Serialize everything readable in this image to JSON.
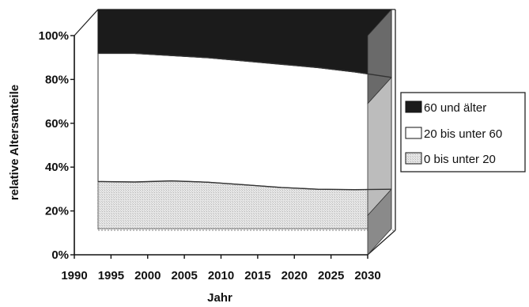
{
  "chart_data": {
    "type": "area",
    "stacked": true,
    "percent": true,
    "three_d": true,
    "xlabel": "Jahr",
    "ylabel": "relative Altersanteile",
    "x": [
      1990,
      1995,
      2000,
      2005,
      2010,
      2015,
      2020,
      2025,
      2030
    ],
    "x_tick_labels": [
      "1990",
      "1995",
      "2000",
      "2005",
      "2010",
      "2015",
      "2020",
      "2025",
      "2030"
    ],
    "ylim": [
      0,
      100
    ],
    "y_ticks": [
      0,
      20,
      40,
      60,
      80,
      100
    ],
    "y_tick_labels": [
      "0%",
      "20%",
      "40%",
      "60%",
      "80%",
      "100%"
    ],
    "series": [
      {
        "name": "0 bis unter 20",
        "values": [
          21.5,
          21.3,
          21.8,
          21.2,
          20.0,
          18.8,
          18.0,
          17.8,
          18.0
        ]
      },
      {
        "name": "20 bis unter 60",
        "values": [
          58.5,
          58.7,
          57.2,
          56.8,
          56.5,
          56.2,
          55.5,
          53.7,
          51.0
        ]
      },
      {
        "name": "60 und älter",
        "values": [
          20.0,
          20.0,
          21.0,
          22.0,
          23.5,
          25.0,
          26.5,
          28.5,
          31.0
        ]
      }
    ],
    "legend": {
      "position": "right",
      "entries": [
        "60 und älter",
        "20 bis unter 60",
        "0 bis unter 20"
      ]
    },
    "colors": {
      "60 und älter": "#1b1b1b",
      "20 bis unter 60": "#ffffff",
      "0 bis unter 20": "#e2e2e2"
    }
  }
}
